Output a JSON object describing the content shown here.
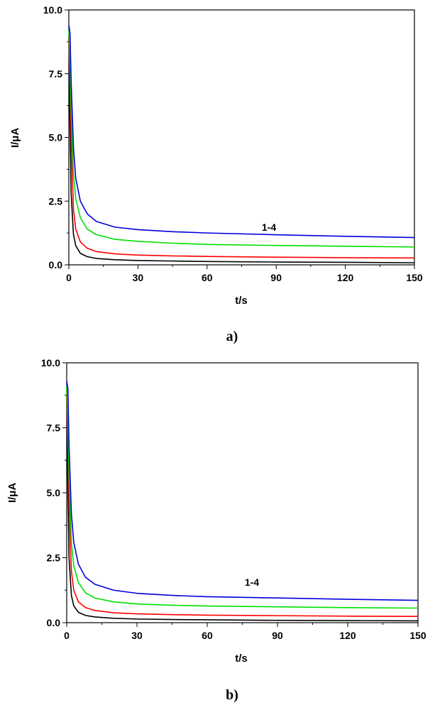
{
  "chart_data": [
    {
      "panel_label": "a)",
      "type": "line",
      "xlabel": "t/s",
      "ylabel": "I/μA",
      "xlim": [
        0,
        150
      ],
      "ylim": [
        0,
        10
      ],
      "xticks": [
        0,
        30,
        60,
        90,
        120,
        150
      ],
      "yticks": [
        "0.0",
        "2.5",
        "5.0",
        "7.5",
        "10.0"
      ],
      "annotation": "1-4",
      "grid": false,
      "series": [
        {
          "color": "#000000",
          "x": [
            0,
            0.5,
            1,
            2,
            3,
            5,
            8,
            12,
            20,
            30,
            45,
            60,
            90,
            120,
            150
          ],
          "y": [
            9.0,
            5.6,
            2.8,
            1.2,
            0.75,
            0.45,
            0.32,
            0.25,
            0.2,
            0.17,
            0.15,
            0.13,
            0.11,
            0.1,
            0.08
          ]
        },
        {
          "color": "#ff0000",
          "x": [
            0,
            0.5,
            1,
            2,
            3,
            5,
            8,
            12,
            20,
            30,
            45,
            60,
            90,
            120,
            150
          ],
          "y": [
            9.0,
            7.5,
            5.0,
            2.2,
            1.4,
            0.9,
            0.65,
            0.52,
            0.43,
            0.38,
            0.35,
            0.33,
            0.3,
            0.28,
            0.27
          ]
        },
        {
          "color": "#00e000",
          "x": [
            0,
            0.5,
            1,
            2,
            3,
            5,
            8,
            12,
            20,
            30,
            45,
            60,
            90,
            120,
            150
          ],
          "y": [
            9.2,
            8.0,
            6.0,
            3.6,
            2.6,
            1.85,
            1.4,
            1.18,
            1.0,
            0.92,
            0.85,
            0.8,
            0.76,
            0.73,
            0.7
          ]
        },
        {
          "color": "#0000dd",
          "x": [
            0,
            0.5,
            1,
            2,
            3,
            5,
            8,
            12,
            20,
            30,
            45,
            60,
            90,
            120,
            150
          ],
          "y": [
            9.4,
            9.1,
            7.2,
            4.6,
            3.4,
            2.5,
            2.0,
            1.7,
            1.48,
            1.38,
            1.3,
            1.25,
            1.18,
            1.12,
            1.07
          ]
        }
      ]
    },
    {
      "panel_label": "b)",
      "type": "line",
      "xlabel": "t/s",
      "ylabel": "I/μA",
      "xlim": [
        0,
        150
      ],
      "ylim": [
        0,
        10
      ],
      "xticks": [
        0,
        30,
        60,
        90,
        120,
        150
      ],
      "yticks": [
        "0.0",
        "2.5",
        "5.0",
        "7.5",
        "10.0"
      ],
      "annotation": "1-4",
      "grid": false,
      "series": [
        {
          "color": "#000000",
          "x": [
            0,
            0.5,
            1,
            2,
            3,
            5,
            8,
            12,
            20,
            30,
            45,
            60,
            90,
            120,
            150
          ],
          "y": [
            8.8,
            5.2,
            2.5,
            1.05,
            0.65,
            0.4,
            0.28,
            0.22,
            0.17,
            0.14,
            0.12,
            0.11,
            0.09,
            0.08,
            0.07
          ]
        },
        {
          "color": "#ff0000",
          "x": [
            0,
            0.5,
            1,
            2,
            3,
            5,
            8,
            12,
            20,
            30,
            45,
            60,
            90,
            120,
            150
          ],
          "y": [
            9.0,
            7.2,
            4.6,
            2.0,
            1.25,
            0.8,
            0.58,
            0.47,
            0.38,
            0.34,
            0.31,
            0.29,
            0.27,
            0.25,
            0.24
          ]
        },
        {
          "color": "#00e000",
          "x": [
            0,
            0.5,
            1,
            2,
            3,
            5,
            8,
            12,
            20,
            30,
            45,
            60,
            90,
            120,
            150
          ],
          "y": [
            9.1,
            7.8,
            5.6,
            3.1,
            2.2,
            1.55,
            1.15,
            0.95,
            0.8,
            0.72,
            0.67,
            0.64,
            0.61,
            0.58,
            0.56
          ]
        },
        {
          "color": "#0000dd",
          "x": [
            0,
            0.5,
            1,
            2,
            3,
            5,
            8,
            12,
            20,
            30,
            45,
            60,
            90,
            120,
            150
          ],
          "y": [
            9.3,
            9.0,
            6.8,
            4.2,
            3.1,
            2.25,
            1.75,
            1.48,
            1.25,
            1.13,
            1.05,
            1.0,
            0.95,
            0.9,
            0.86
          ]
        }
      ]
    }
  ]
}
